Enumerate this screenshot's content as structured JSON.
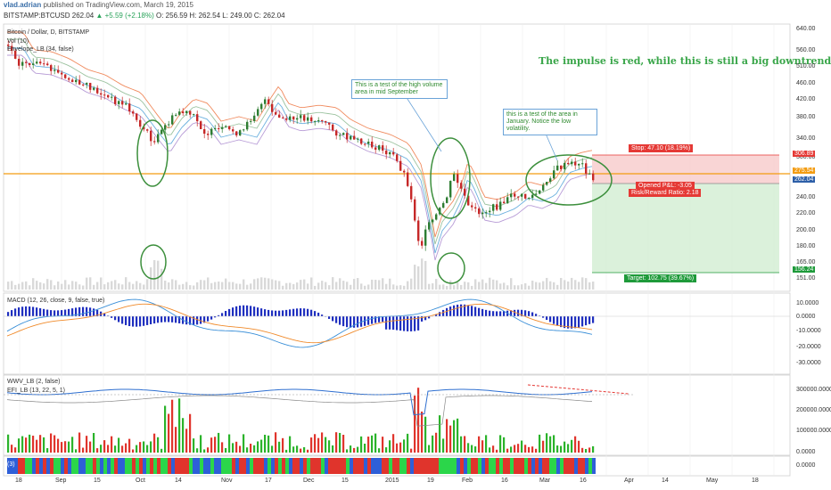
{
  "header": {
    "author": "vlad.adrian",
    "published": "published on TradingView.com, March 19, 2015",
    "symbol": "BITSTAMP:BTCUSD",
    "last": "262.04",
    "change": "▲ +5.59 (+2.18%)",
    "ohlc": "O: 256.59  H: 262.54  L: 249.00  C: 262.04"
  },
  "main_pane": {
    "title": "Bitcoin / Dollar, D, BITSTAMP",
    "vol_label": "Vol (10)",
    "envelope_label": "Envelope_LB (34, false)",
    "price_axis": [
      "640.00",
      "560.00",
      "510.00",
      "460.00",
      "420.00",
      "380.00",
      "340.00",
      "300.00",
      "275.00",
      "240.00",
      "220.00",
      "200.00",
      "180.00",
      "165.00",
      "151.00"
    ],
    "price_tags": [
      "306.89",
      "275.54",
      "262.04",
      "156.24"
    ],
    "impulse_note": "The impulse is red, while this is still a big downtrend.",
    "note_september": "This is a test of the high volume area in mid September",
    "note_january": "this is a test of the area in January. Notice the low volatility.",
    "stop_label": "Stop: 47.10 (18.19%)",
    "pnl_label": "Opened P&L: -3.05",
    "rr_label": "Risk/Reward Ratio: 2.18",
    "target_label": "Target: 102.75 (39.67%)"
  },
  "macd_pane": {
    "title": "MACD (12, 26, close, 9, false, true)",
    "axis": [
      "10.0000",
      "0.0000",
      "-10.0000",
      "-20.0000",
      "-30.0000"
    ]
  },
  "wwv_pane": {
    "title": "WWV_LB (2, false)",
    "efi_title": "EFI_LB (13, 22, 5, 1)",
    "axis": [
      "300000.0000",
      "200000.0000",
      "100000.0000",
      "0.0000"
    ]
  },
  "strip_pane": {
    "title": "(3)",
    "axis": [
      "0.0000"
    ]
  },
  "time_axis": [
    "18",
    "Sep",
    "15",
    "Oct",
    "14",
    "Nov",
    "17",
    "Dec",
    "15",
    "2015",
    "19",
    "Feb",
    "16",
    "Mar",
    "16",
    "Apr",
    "14",
    "May",
    "18"
  ],
  "colors": {
    "bull": "#2e7d32",
    "bear": "#c62828",
    "stop_zone": "#f8d0d0",
    "target_zone": "#d7efd7",
    "level_line": "#f39c12",
    "ellipse": "#3c8f3c"
  }
}
